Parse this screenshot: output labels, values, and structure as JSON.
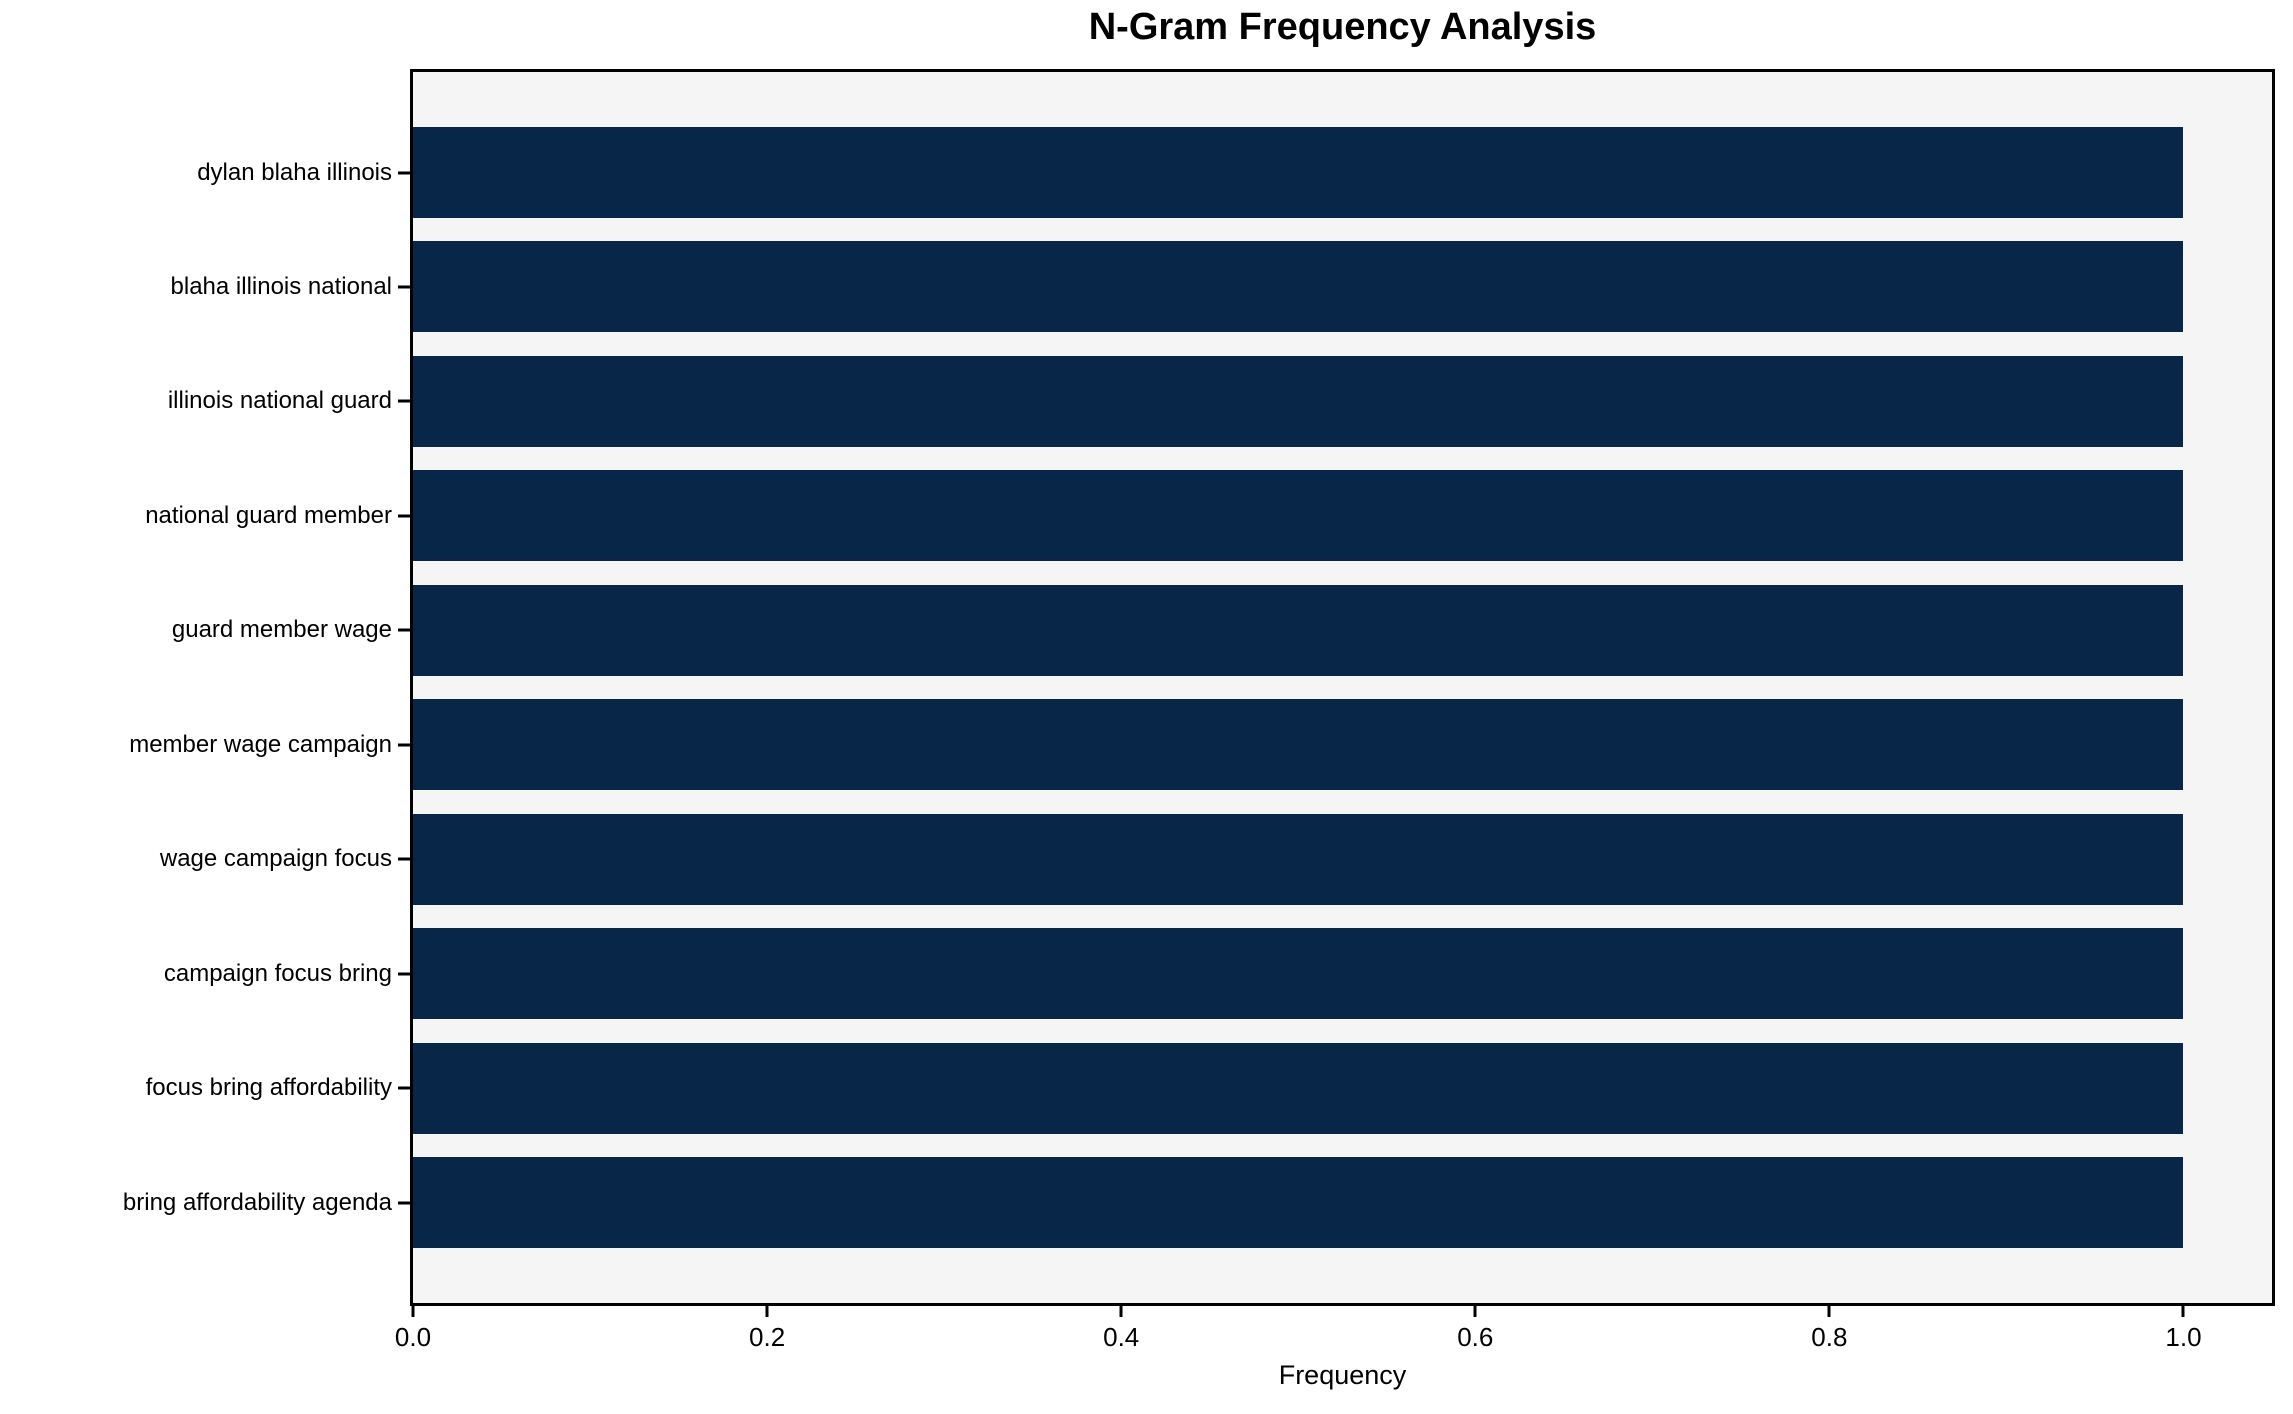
{
  "chart_data": {
    "type": "bar",
    "orientation": "horizontal",
    "title": "N-Gram Frequency Analysis",
    "xlabel": "Frequency",
    "ylabel": "",
    "categories": [
      "dylan blaha illinois",
      "blaha illinois national",
      "illinois national guard",
      "national guard member",
      "guard member wage",
      "member wage campaign",
      "wage campaign focus",
      "campaign focus bring",
      "focus bring affordability",
      "bring affordability agenda"
    ],
    "values": [
      1.0,
      1.0,
      1.0,
      1.0,
      1.0,
      1.0,
      1.0,
      1.0,
      1.0,
      1.0
    ],
    "xlim": [
      0,
      1.05
    ],
    "xticks": [
      0.0,
      0.2,
      0.4,
      0.6,
      0.8,
      1.0
    ],
    "xtick_labels": [
      "0.0",
      "0.2",
      "0.4",
      "0.6",
      "0.8",
      "1.0"
    ],
    "grid": false,
    "legend_position": "none",
    "colors": {
      "bar": "#082648",
      "plot_background": "#f5f5f5",
      "figure_background": "#ffffff",
      "spine": "#000000",
      "text": "#000000"
    }
  }
}
